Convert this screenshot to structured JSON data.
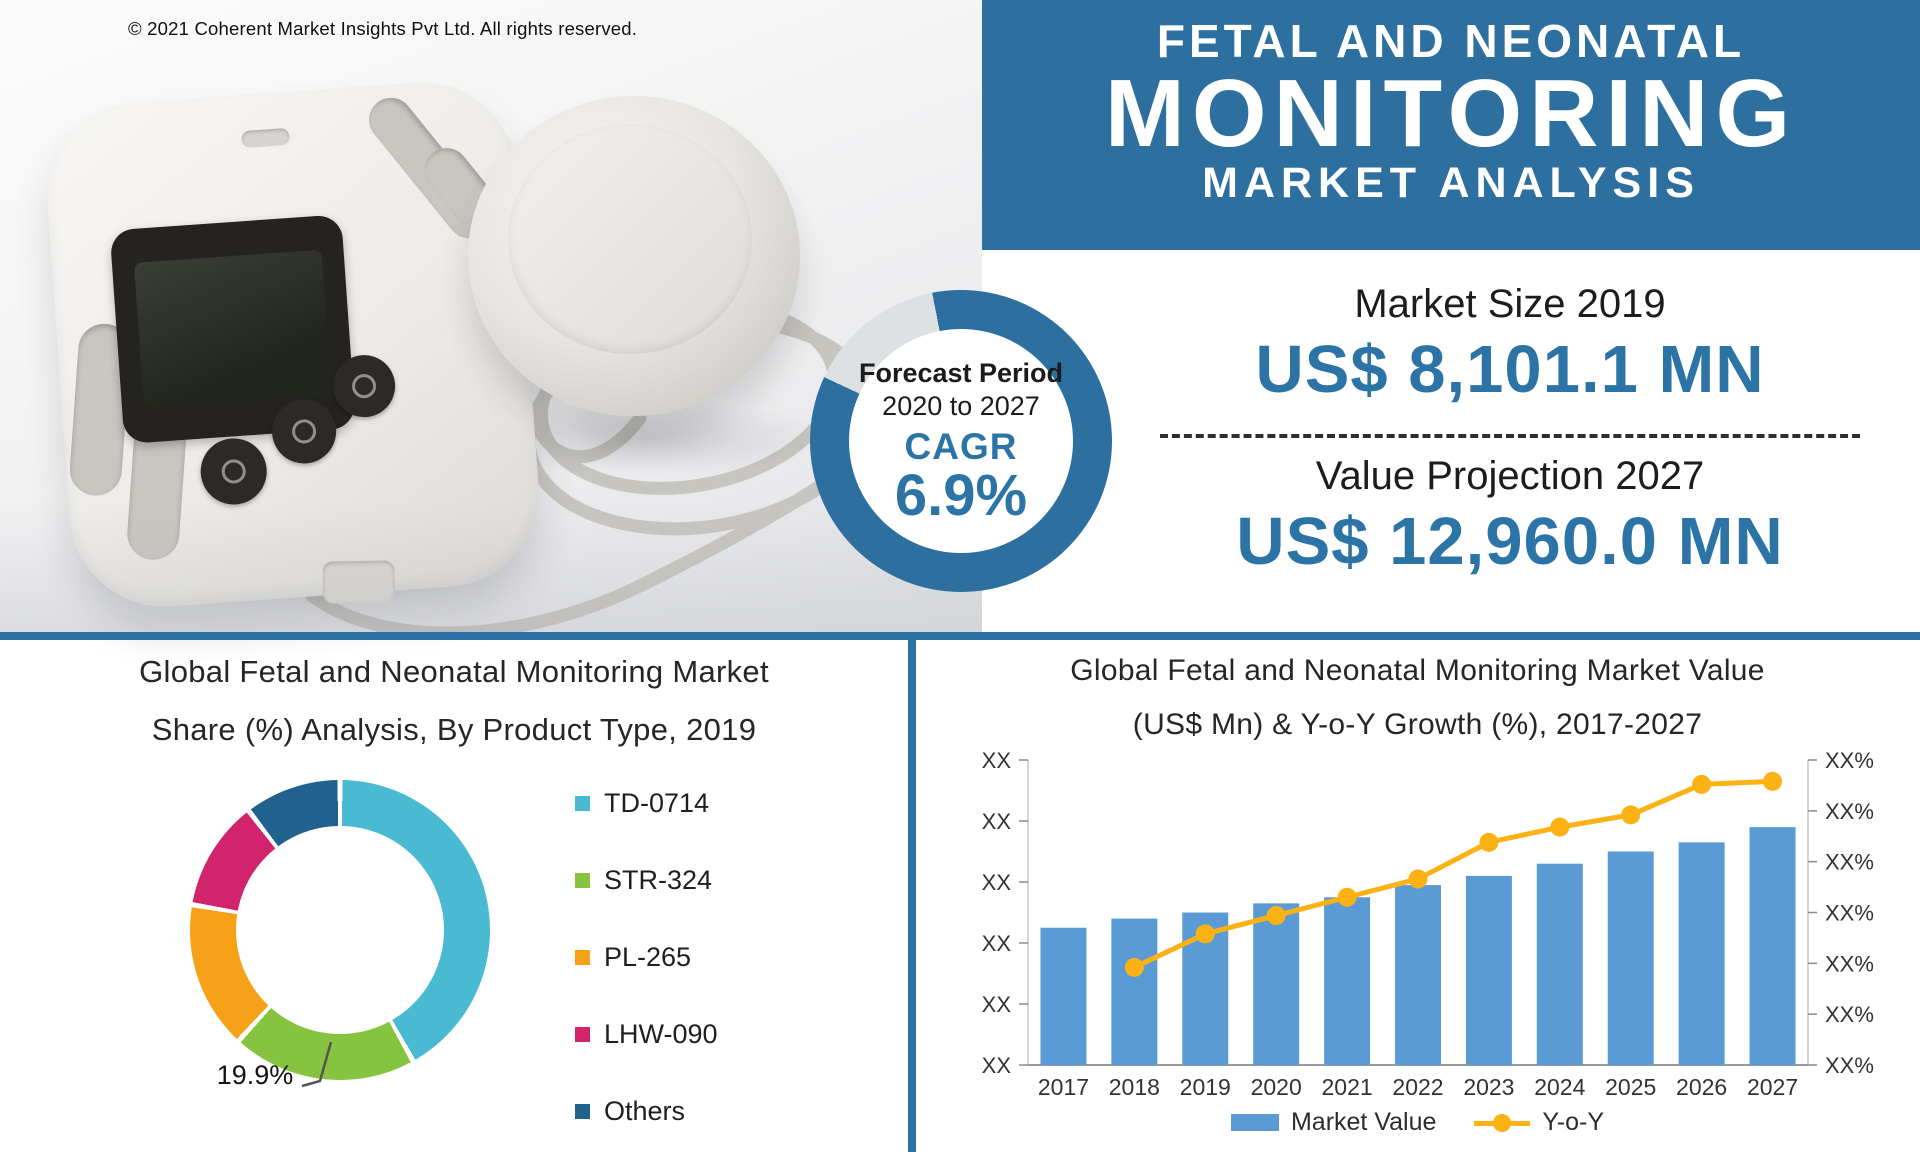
{
  "copyright": "© 2021 Coherent Market Insights Pvt Ltd. All rights reserved.",
  "header": {
    "line1": "FETAL AND NEONATAL",
    "line2": "MONITORING",
    "line3": "MARKET ANALYSIS"
  },
  "stats": {
    "market_size_label": "Market Size 2019",
    "market_size_value": "US$ 8,101.1 MN",
    "projection_label": "Value Projection 2027",
    "projection_value": "US$ 12,960.0 MN"
  },
  "badge": {
    "line1": "Forecast Period",
    "line2": "2020 to 2027",
    "cagr_label": "CAGR",
    "cagr_value": "6.9%"
  },
  "colors": {
    "accent_blue": "#2d6f9e",
    "value_blue": "#2d74a6",
    "divider_blue": "#2b71a3",
    "bar_blue": "#5b9bd5",
    "line_yellow": "#fcb214"
  },
  "chart_data": [
    {
      "type": "pie",
      "subtype": "donut",
      "title_line1": "Global Fetal and Neonatal Monitoring Market",
      "title_line2": "Share (%) Analysis, By Product Type, 2019",
      "categories": [
        "TD-0714",
        "STR-324",
        "PL-265",
        "LHW-090",
        "Others"
      ],
      "values_pct": [
        41.9,
        19.9,
        15.9,
        11.9,
        10.4
      ],
      "colors": [
        "#4ab9d2",
        "#86c440",
        "#f6a118",
        "#d2246c",
        "#20618e"
      ],
      "labeled_slice_only": true,
      "callout": {
        "category": "STR-324",
        "text": "19.9%"
      },
      "legend_position": "right"
    },
    {
      "type": "bar",
      "subtype": "bar+line combo, dual axis",
      "title_line1": "Global Fetal and Neonatal Monitoring Market Value",
      "title_line2": "(US$ Mn) & Y-o-Y Growth (%), 2017-2027",
      "categories": [
        "2017",
        "2018",
        "2019",
        "2020",
        "2021",
        "2022",
        "2023",
        "2024",
        "2025",
        "2026",
        "2027"
      ],
      "series": [
        {
          "name": "Market Value",
          "type": "bar",
          "color": "#5b9bd5",
          "axis": "left",
          "values_relative_pct_of_axis": [
            45,
            48,
            50,
            53,
            55,
            59,
            62,
            66,
            70,
            73,
            78
          ]
        },
        {
          "name": "Y-o-Y",
          "type": "line",
          "color": "#fcb214",
          "axis": "right",
          "values_relative_pct_of_axis": [
            null,
            32,
            43,
            49,
            55,
            61,
            73,
            78,
            82,
            92,
            93
          ]
        }
      ],
      "left_axis_tick_labels": [
        "XX",
        "XX",
        "XX",
        "XX",
        "XX",
        "XX"
      ],
      "right_axis_tick_labels": [
        "XX%",
        "XX%",
        "XX%",
        "XX%",
        "XX%",
        "XX%",
        "XX%"
      ],
      "grid": false,
      "legend_position": "bottom"
    }
  ]
}
